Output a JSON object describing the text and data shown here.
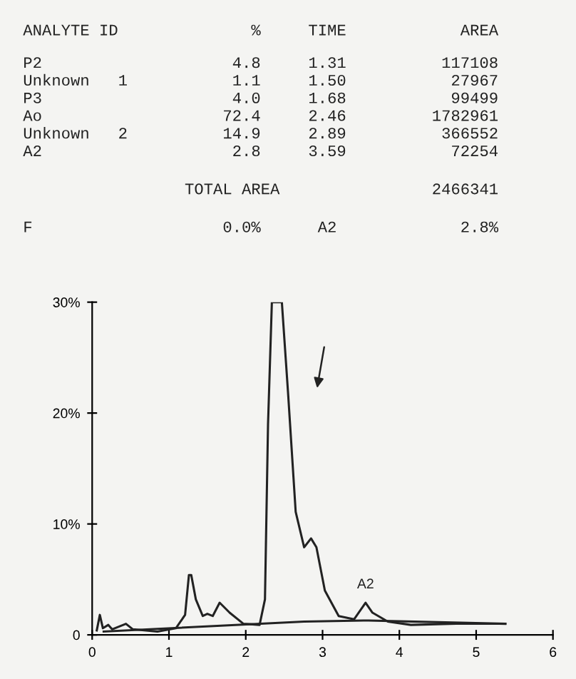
{
  "chart_data": {
    "type": "line",
    "annotations": [
      "ANALYTE ID              %     TIME            AREA",
      "P2                    4.8     1.31          117108",
      "Unknown   1           1.1     1.50           27967",
      "P3                    4.0     1.68           99499",
      "Ao                   72.4     2.46         1782961",
      "Unknown   2          14.9     2.89          366552",
      "A2                    2.8     3.59           72254",
      "                 TOTAL AREA                2466341",
      "F                    0.0%      A2             2.8%",
      {
        "text": "A2",
        "x": 3.56,
        "y": 3.4
      }
    ],
    "series": [
      {
        "color": "#222222",
        "x": [
          0.06,
          0.1,
          0.14,
          0.21,
          0.26,
          0.44,
          0.53,
          0.85,
          1.09,
          1.21,
          1.26,
          1.29,
          1.35,
          1.44,
          1.5,
          1.57,
          1.66,
          1.79,
          1.97,
          2.18,
          2.25,
          2.29,
          2.34,
          2.47,
          2.55,
          2.65,
          2.76,
          2.85,
          2.92,
          3.03,
          3.21,
          3.41,
          3.56,
          3.65,
          3.85,
          4.15,
          4.74,
          5.38
        ],
        "values": [
          0.4,
          1.8,
          0.6,
          0.9,
          0.5,
          1.0,
          0.5,
          0.3,
          0.6,
          1.8,
          5.4,
          5.4,
          3.2,
          1.7,
          1.9,
          1.7,
          2.9,
          2.0,
          1.0,
          0.9,
          3.2,
          19,
          30,
          30,
          21.9,
          11.1,
          7.9,
          8.7,
          7.9,
          4.0,
          1.7,
          1.4,
          2.9,
          2.0,
          1.2,
          0.9,
          1.0,
          1.0
        ]
      },
      {
        "color": "#222222",
        "x": [
          0.15,
          2.76,
          3.6,
          5.38
        ],
        "values": [
          0.3,
          1.2,
          1.3,
          1.0
        ]
      }
    ],
    "xlim": [
      0,
      6
    ],
    "ylim": [
      0,
      30
    ],
    "xticks": [
      0,
      1,
      2,
      3,
      4,
      5,
      6
    ],
    "yticks": [
      {
        "value": 0,
        "label": "0"
      },
      {
        "value": 10,
        "label": "10%"
      },
      {
        "value": 20,
        "label": "20%"
      },
      {
        "value": 30,
        "label": "30%"
      }
    ],
    "grid": false
  }
}
